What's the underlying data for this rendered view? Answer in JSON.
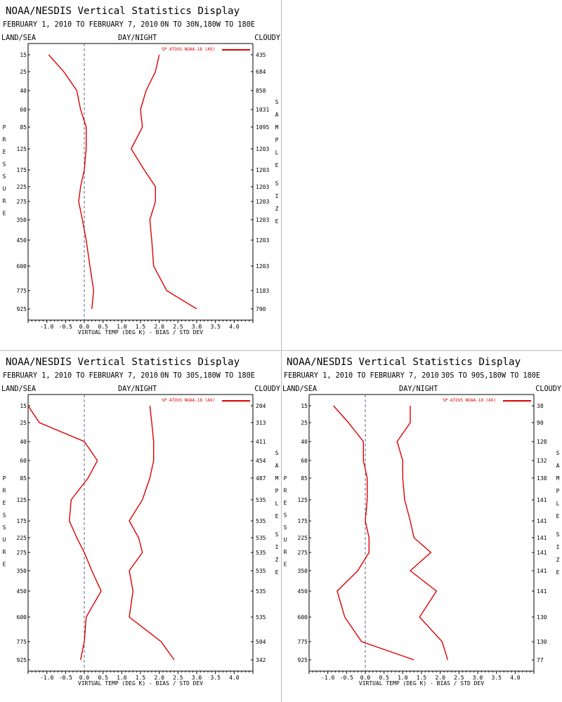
{
  "chart_data": [
    {
      "type": "line",
      "title": "NOAA/NESDIS Vertical Statistics Display",
      "subtitle": "FEBRUARY 1, 2010 TO FEBRUARY 7, 2010",
      "region": "0N TO 30N,180W TO 180E",
      "left_label": "LAND/SEA",
      "center_label": "DAY/NIGHT",
      "right_label": "CLOUDY",
      "xlabel": "VIRTUAL TEMP (DEG K) - BIAS / STD DEV",
      "ylabel": "PRESSURE",
      "y2label": "SAMPLE SIZE",
      "legend": "SP ATOVS NOAA-18 (A9)",
      "xlim": [
        -1.5,
        4.5
      ],
      "x_ticks": [
        "-1.0",
        "-0.5",
        "0.0",
        "0.5",
        "1.0",
        "1.5",
        "2.0",
        "2.5",
        "3.0",
        "3.5",
        "4.0"
      ],
      "y_levels": [
        "15",
        "25",
        "40",
        "60",
        "85",
        "125",
        "175",
        "225",
        "275",
        "350",
        "450",
        "600",
        "775",
        "925"
      ],
      "sample_size": [
        "435",
        "684",
        "858",
        "1031",
        "1095",
        "1203",
        "1203",
        "1203",
        "1203",
        "1203",
        "1203",
        "1203",
        "1183",
        "790"
      ],
      "series": [
        {
          "values": [
            -0.95,
            -0.55,
            -0.2,
            -0.1,
            0.05,
            0.05,
            0.0,
            -0.1,
            -0.15,
            -0.05,
            0.05,
            0.15,
            0.25,
            0.2
          ]
        },
        {
          "values": [
            2.0,
            1.9,
            1.65,
            1.5,
            1.55,
            1.25,
            1.6,
            1.9,
            1.9,
            1.75,
            1.8,
            1.85,
            2.2,
            3.0
          ]
        }
      ]
    },
    {
      "type": "line",
      "title": "NOAA/NESDIS Vertical Statistics Display",
      "subtitle": "FEBRUARY 1, 2010 TO FEBRUARY 7, 2010",
      "region": "0N TO 30S,180W TO 180E",
      "left_label": "LAND/SEA",
      "center_label": "DAY/NIGHT",
      "right_label": "CLOUDY",
      "xlabel": "VIRTUAL TEMP (DEG K) - BIAS / STD DEV",
      "ylabel": "PRESSURE",
      "y2label": "SAMPLE SIZE",
      "legend": "SP ATOVS NOAA-18 (A9)",
      "xlim": [
        -1.5,
        4.5
      ],
      "x_ticks": [
        "-1.0",
        "-0.5",
        "0.0",
        "0.5",
        "1.0",
        "1.5",
        "2.0",
        "2.5",
        "3.0",
        "3.5",
        "4.0"
      ],
      "y_levels": [
        "15",
        "25",
        "40",
        "60",
        "85",
        "125",
        "175",
        "225",
        "275",
        "350",
        "450",
        "600",
        "775",
        "925"
      ],
      "sample_size": [
        "204",
        "313",
        "411",
        "454",
        "487",
        "535",
        "535",
        "535",
        "535",
        "535",
        "535",
        "535",
        "504",
        "342"
      ],
      "series": [
        {
          "values": [
            -1.5,
            -1.2,
            0.0,
            0.35,
            0.1,
            -0.35,
            -0.4,
            -0.2,
            0.0,
            0.2,
            0.45,
            0.05,
            0.0,
            -0.1
          ]
        },
        {
          "values": [
            1.75,
            1.8,
            1.85,
            1.85,
            1.75,
            1.55,
            1.2,
            1.45,
            1.55,
            1.2,
            1.3,
            1.2,
            2.05,
            2.4
          ]
        }
      ]
    },
    {
      "type": "line",
      "title": "NOAA/NESDIS Vertical Statistics Display",
      "subtitle": "FEBRUARY 1, 2010 TO FEBRUARY 7, 2010",
      "region": "30S TO 90S,180W TO 180E",
      "left_label": "LAND/SEA",
      "center_label": "DAY/NIGHT",
      "right_label": "CLOUDY",
      "xlabel": "VIRTUAL TEMP (DEG K) - BIAS / STD DEV",
      "ylabel": "PRESSURE",
      "y2label": "SAMPLE SIZE",
      "legend": "SP ATOVS NOAA-18 (A9)",
      "xlim": [
        -1.5,
        4.5
      ],
      "x_ticks": [
        "-1.0",
        "-0.5",
        "0.0",
        "0.5",
        "1.0",
        "1.5",
        "2.0",
        "2.5",
        "3.0",
        "3.5",
        "4.0"
      ],
      "y_levels": [
        "15",
        "25",
        "40",
        "60",
        "85",
        "125",
        "175",
        "225",
        "275",
        "350",
        "450",
        "600",
        "775",
        "925"
      ],
      "sample_size": [
        "38",
        "90",
        "128",
        "132",
        "138",
        "141",
        "141",
        "141",
        "141",
        "141",
        "141",
        "130",
        "130",
        "77"
      ],
      "series": [
        {
          "values": [
            -0.85,
            -0.45,
            -0.05,
            -0.05,
            0.05,
            0.05,
            0.0,
            0.1,
            0.1,
            -0.2,
            -0.75,
            -0.55,
            -0.1,
            1.3
          ],
          "color": "#dd0000"
        },
        {
          "values": [
            1.2,
            1.2,
            0.85,
            1.0,
            1.0,
            1.05,
            1.2,
            1.3,
            1.75,
            1.2,
            1.9,
            1.45,
            2.05,
            2.2
          ],
          "color": "#dd0000"
        }
      ]
    }
  ],
  "colors": {
    "line": "#dd0000",
    "zero_line": "#606080",
    "axis": "#000000",
    "separator": "#bdbdbd"
  }
}
